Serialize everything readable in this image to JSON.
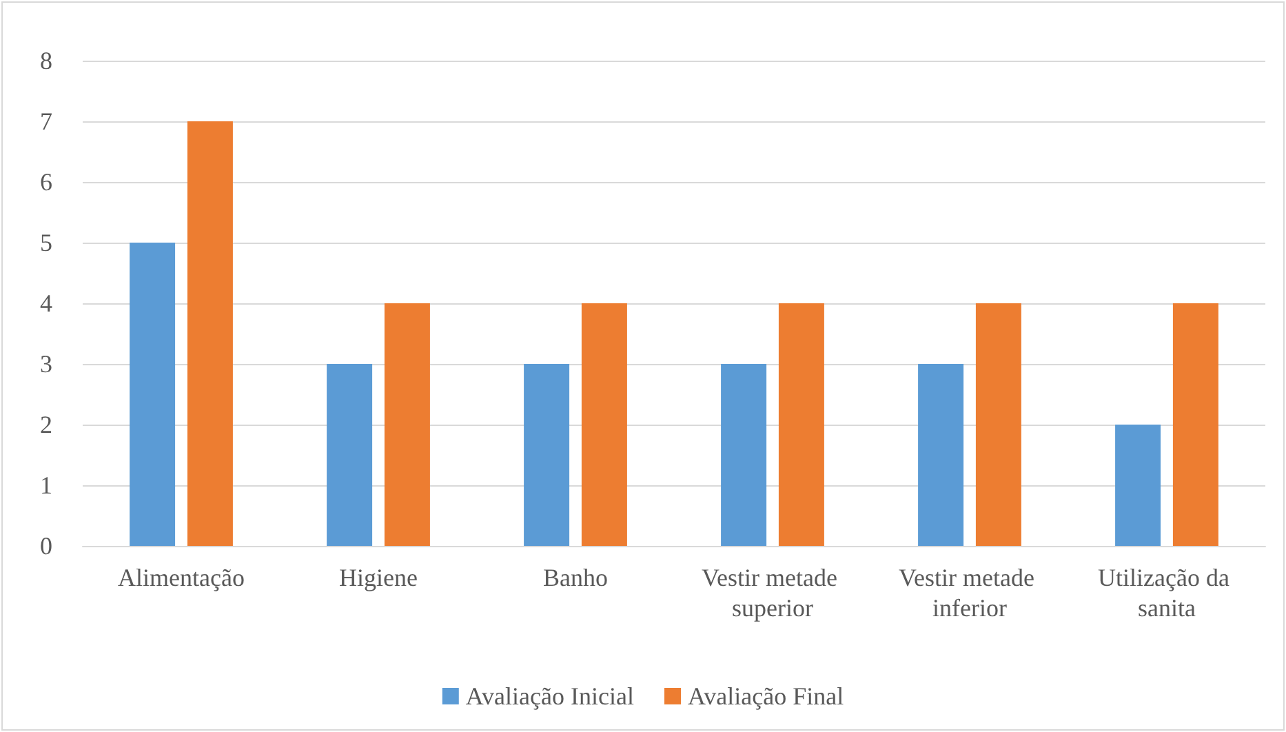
{
  "chart_data": {
    "type": "bar",
    "categories": [
      "Alimentação",
      "Higiene",
      "Banho",
      "Vestir metade superior",
      "Vestir metade inferior",
      "Utilização da sanita"
    ],
    "series": [
      {
        "name": "Avaliação Inicial",
        "color": "#5b9bd5",
        "values": [
          5,
          3,
          3,
          3,
          3,
          2
        ]
      },
      {
        "name": "Avaliação Final",
        "color": "#ed7d31",
        "values": [
          7,
          4,
          4,
          4,
          4,
          4
        ]
      }
    ],
    "ylim": [
      0,
      8
    ],
    "yticks": [
      0,
      1,
      2,
      3,
      4,
      5,
      6,
      7,
      8
    ],
    "grid": "y",
    "legend": "bottom"
  }
}
